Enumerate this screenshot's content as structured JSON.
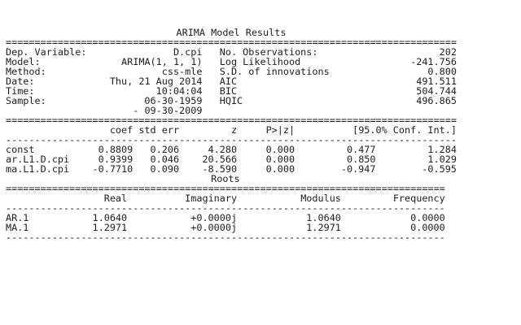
{
  "title": "ARIMA Model Results",
  "summary": {
    "left": [
      {
        "label": "Dep. Variable:",
        "value": "D.cpi"
      },
      {
        "label": "Model:",
        "value": "ARIMA(1, 1, 1)"
      },
      {
        "label": "Method:",
        "value": "css-mle"
      },
      {
        "label": "Date:",
        "value": "Thu, 21 Aug 2014"
      },
      {
        "label": "Time:",
        "value": "10:04:04"
      },
      {
        "label": "Sample:",
        "value": "06-30-1959"
      }
    ],
    "sample_end": "- 09-30-2009",
    "right": [
      {
        "label": "No. Observations:",
        "value": "202"
      },
      {
        "label": "Log Likelihood",
        "value": "-241.756"
      },
      {
        "label": "S.D. of innovations",
        "value": "0.800"
      },
      {
        "label": "AIC",
        "value": "491.511"
      },
      {
        "label": "BIC",
        "value": "504.744"
      },
      {
        "label": "HQIC",
        "value": "496.865"
      }
    ]
  },
  "coef_table": {
    "headers": [
      "coef",
      "std err",
      "z",
      "P>|z|",
      "[95.0% Conf. Int.]"
    ],
    "rows": [
      {
        "name": "const",
        "coef": "0.8809",
        "std_err": "0.206",
        "z": "4.280",
        "p": "0.000",
        "lower": "0.477",
        "upper": "1.284"
      },
      {
        "name": "ar.L1.D.cpi",
        "coef": "0.9399",
        "std_err": "0.046",
        "z": "20.566",
        "p": "0.000",
        "lower": "0.850",
        "upper": "1.029"
      },
      {
        "name": "ma.L1.D.cpi",
        "coef": "-0.7710",
        "std_err": "0.090",
        "z": "-8.590",
        "p": "0.000",
        "lower": "-0.947",
        "upper": "-0.595"
      }
    ]
  },
  "roots_table": {
    "title": "Roots",
    "headers": [
      "Real",
      "Imaginary",
      "Modulus",
      "Frequency"
    ],
    "rows": [
      {
        "name": "AR.1",
        "real": "1.0640",
        "imag": "+0.0000j",
        "modulus": "1.0640",
        "freq": "0.0000"
      },
      {
        "name": "MA.1",
        "real": "1.2971",
        "imag": "+0.0000j",
        "modulus": "1.2971",
        "freq": "0.0000"
      }
    ]
  }
}
